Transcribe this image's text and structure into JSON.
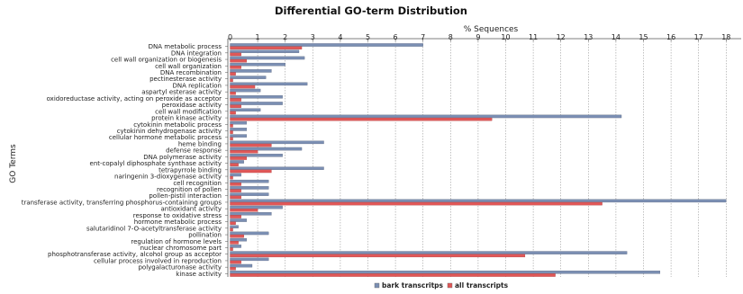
{
  "chart_data": {
    "type": "bar",
    "orientation": "horizontal",
    "title": "Differential GO-term Distribution",
    "xlabel": "% Sequences",
    "ylabel": "GO Terms",
    "xlim": [
      0,
      18.5
    ],
    "xticks": [
      0,
      1,
      2,
      3,
      4,
      5,
      6,
      7,
      8,
      9,
      10,
      11,
      12,
      13,
      14,
      15,
      16,
      17,
      18
    ],
    "grid": true,
    "legend_position": "bottom",
    "colors": {
      "series1": "#7b8fb3",
      "series2": "#e05858"
    },
    "categories": [
      "DNA metabolic process",
      "DNA integration",
      "cell wall organization or biogenesis",
      "cell wall organization",
      "DNA recombination",
      "pectinesterase activity",
      "DNA replication",
      "aspartyl esterase activity",
      "oxidoreductase activity, acting on peroxide as acceptor",
      "peroxidase activity",
      "cell wall modification",
      "protein kinase activity",
      "cytokinin metabolic process",
      "cytokinin dehydrogenase activity",
      "cellular hormone metabolic process",
      "heme binding",
      "defense response",
      "DNA polymerase activity",
      "ent-copalyl diphosphate synthase activity",
      "tetrapyrrole binding",
      "naringenin 3-dioxygenase activity",
      "cell recognition",
      "recognition of pollen",
      "pollen-pistil interaction",
      "transferase activity, transferring phosphorus-containing groups",
      "antioxidant activity",
      "response to oxidative stress",
      "hormone metabolic process",
      "salutaridinol 7-O-acetyltransferase activity",
      "pollination",
      "regulation of hormone levels",
      "nuclear chromosome part",
      "phosphotransferase activity, alcohol group as acceptor",
      "cellular process involved in reproduction",
      "polygalacturonase activity",
      "kinase activity"
    ],
    "series": [
      {
        "name": "bark transcritps",
        "values": [
          7.0,
          2.5,
          2.7,
          2.0,
          1.5,
          1.3,
          2.8,
          1.1,
          1.9,
          1.9,
          1.1,
          14.2,
          0.6,
          0.6,
          0.6,
          3.4,
          2.6,
          1.9,
          0.5,
          3.4,
          0.4,
          1.4,
          1.4,
          1.4,
          18.0,
          1.9,
          1.5,
          0.6,
          0.3,
          1.4,
          0.6,
          0.4,
          14.4,
          1.4,
          0.8,
          15.6
        ]
      },
      {
        "name": "all transcripts",
        "values": [
          2.6,
          0.4,
          0.6,
          0.4,
          0.2,
          0.1,
          0.9,
          0.2,
          0.4,
          0.4,
          0.2,
          9.5,
          0.1,
          0.1,
          0.1,
          1.5,
          1.0,
          0.6,
          0.3,
          1.5,
          0.1,
          0.4,
          0.4,
          0.4,
          13.5,
          1.0,
          0.4,
          0.2,
          0.1,
          0.5,
          0.3,
          0.1,
          10.7,
          0.4,
          0.2,
          11.8
        ]
      }
    ]
  }
}
